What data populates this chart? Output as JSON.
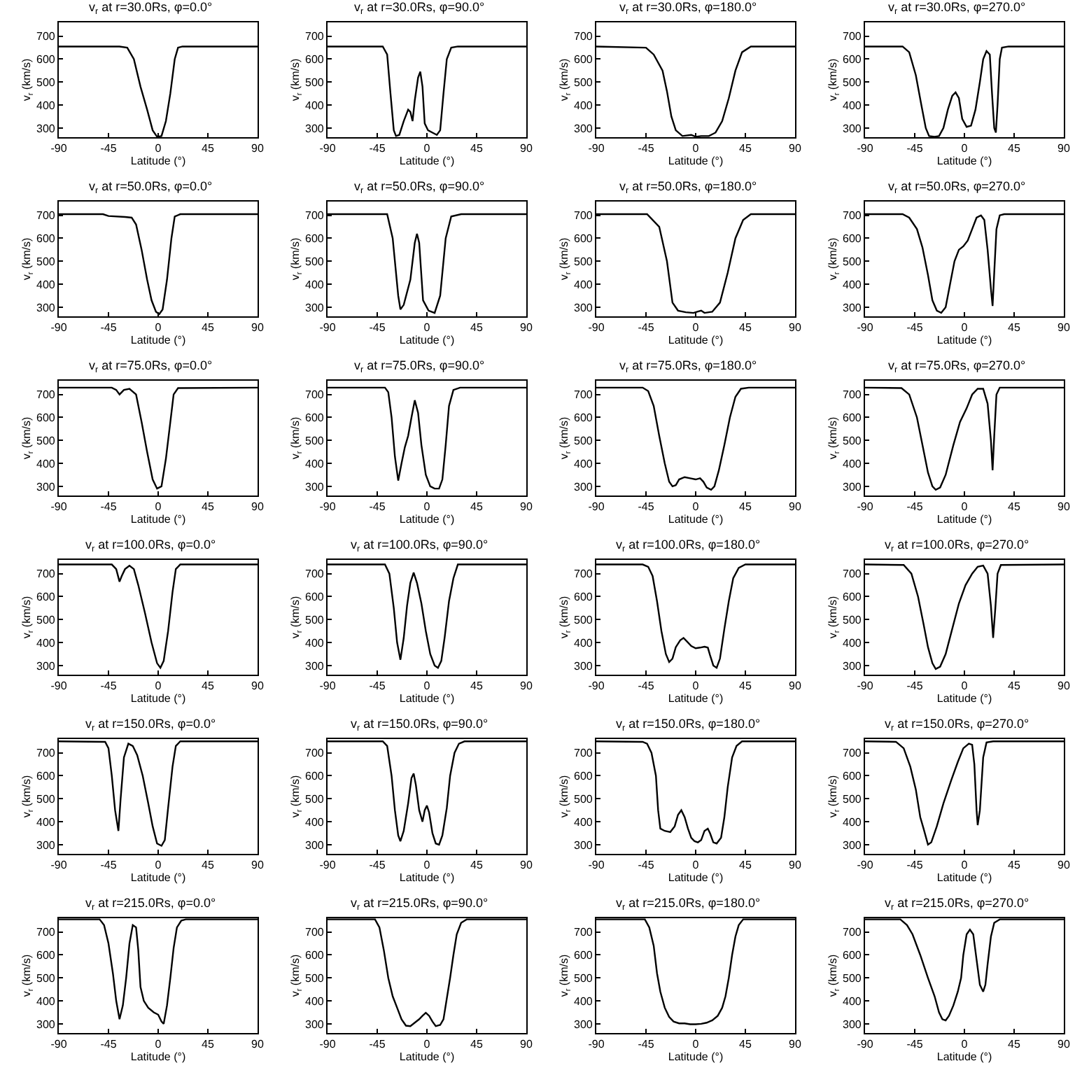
{
  "chart_data": [
    {
      "type": "line",
      "title": "v$_{r}$ at r=30.0Rs, φ=0.0°",
      "xlabel": "Latitude (°)",
      "ylabel": "v$_{r}$ (km/s)",
      "color": "#000000",
      "xlim": [
        -90,
        90
      ],
      "xticks": [
        -90,
        -45,
        0,
        45,
        90
      ],
      "ylim": [
        260,
        760
      ],
      "yticks": [
        300,
        400,
        500,
        600,
        700
      ],
      "grid": false,
      "legend": false,
      "x": [
        -90,
        -35,
        -28,
        -22,
        -16,
        -10,
        -5,
        -1,
        3,
        7,
        11,
        15,
        18,
        22,
        90
      ],
      "values": [
        655,
        655,
        650,
        600,
        480,
        380,
        290,
        262,
        265,
        330,
        450,
        600,
        650,
        655,
        655
      ]
    },
    {
      "type": "line",
      "title": "v$_{r}$ at r=30.0Rs, φ=90.0°",
      "xlabel": "Latitude (°)",
      "ylabel": "v$_{r}$ (km/s)",
      "color": "#000000",
      "xlim": [
        -90,
        90
      ],
      "xticks": [
        -90,
        -45,
        0,
        45,
        90
      ],
      "ylim": [
        260,
        760
      ],
      "yticks": [
        300,
        400,
        500,
        600,
        700
      ],
      "grid": false,
      "legend": false,
      "x": [
        -90,
        -40,
        -36,
        -33,
        -30,
        -28,
        -25,
        -21,
        -17,
        -15,
        -13,
        -11,
        -8,
        -6,
        -4,
        -2,
        1,
        5,
        9,
        12,
        15,
        18,
        22,
        28,
        90
      ],
      "values": [
        655,
        655,
        620,
        450,
        290,
        265,
        270,
        330,
        380,
        370,
        330,
        420,
        520,
        545,
        480,
        320,
        290,
        280,
        270,
        290,
        450,
        600,
        650,
        655,
        655
      ]
    },
    {
      "type": "line",
      "title": "v$_{r}$ at r=30.0Rs, φ=180.0°",
      "xlabel": "Latitude (°)",
      "ylabel": "v$_{r}$ (km/s)",
      "color": "#000000",
      "xlim": [
        -90,
        90
      ],
      "xticks": [
        -90,
        -45,
        0,
        45,
        90
      ],
      "ylim": [
        260,
        760
      ],
      "yticks": [
        300,
        400,
        500,
        600,
        700
      ],
      "grid": false,
      "legend": false,
      "x": [
        -90,
        -45,
        -38,
        -30,
        -26,
        -22,
        -18,
        -12,
        -4,
        0,
        5,
        12,
        18,
        24,
        30,
        36,
        42,
        50,
        90
      ],
      "values": [
        655,
        650,
        620,
        550,
        460,
        350,
        290,
        265,
        270,
        262,
        265,
        265,
        280,
        330,
        430,
        550,
        630,
        655,
        655
      ]
    },
    {
      "type": "line",
      "title": "v$_{r}$ at r=30.0Rs, φ=270.0°",
      "xlabel": "Latitude (°)",
      "ylabel": "v$_{r}$ (km/s)",
      "color": "#000000",
      "xlim": [
        -90,
        90
      ],
      "xticks": [
        -90,
        -45,
        0,
        45,
        90
      ],
      "ylim": [
        260,
        760
      ],
      "yticks": [
        300,
        400,
        500,
        600,
        700
      ],
      "grid": false,
      "legend": false,
      "x": [
        -90,
        -56,
        -50,
        -44,
        -39,
        -35,
        -32,
        -27,
        -23,
        -19,
        -15,
        -11,
        -8,
        -5,
        -2,
        2,
        6,
        10,
        14,
        17,
        20,
        23,
        25,
        27,
        28.5,
        30,
        32,
        34,
        40,
        90
      ],
      "values": [
        655,
        655,
        630,
        530,
        400,
        300,
        265,
        262,
        265,
        300,
        380,
        440,
        455,
        430,
        340,
        305,
        310,
        380,
        500,
        600,
        635,
        620,
        450,
        300,
        280,
        400,
        600,
        650,
        655,
        655
      ]
    },
    {
      "type": "line",
      "title": "v$_{r}$ at r=50.0Rs, φ=0.0°",
      "xlabel": "Latitude (°)",
      "ylabel": "v$_{r}$ (km/s)",
      "color": "#000000",
      "xlim": [
        -90,
        90
      ],
      "xticks": [
        -90,
        -45,
        0,
        45,
        90
      ],
      "ylim": [
        260,
        760
      ],
      "yticks": [
        300,
        400,
        500,
        600,
        700
      ],
      "grid": false,
      "legend": false,
      "x": [
        -90,
        -50,
        -45,
        -30,
        -24,
        -20,
        -15,
        -10,
        -6,
        -2,
        1,
        4,
        8,
        12,
        15,
        20,
        90
      ],
      "values": [
        705,
        705,
        697,
        693,
        690,
        660,
        550,
        420,
        330,
        280,
        270,
        290,
        420,
        600,
        695,
        705,
        705
      ]
    },
    {
      "type": "line",
      "title": "v$_{r}$ at r=50.0Rs, φ=90.0°",
      "xlabel": "Latitude (°)",
      "ylabel": "v$_{r}$ (km/s)",
      "color": "#000000",
      "xlim": [
        -90,
        90
      ],
      "xticks": [
        -90,
        -45,
        0,
        45,
        90
      ],
      "ylim": [
        260,
        760
      ],
      "yticks": [
        300,
        400,
        500,
        600,
        700
      ],
      "grid": false,
      "legend": false,
      "x": [
        -90,
        -36,
        -31,
        -26,
        -24,
        -21,
        -15,
        -11,
        -9,
        -7,
        -3.5,
        1.5,
        7,
        12,
        17,
        22,
        31,
        90
      ],
      "values": [
        705,
        705,
        600,
        350,
        290,
        310,
        420,
        580,
        620,
        580,
        330,
        285,
        275,
        350,
        600,
        695,
        705,
        705
      ]
    },
    {
      "type": "line",
      "title": "v$_{r}$ at r=50.0Rs, φ=180.0°",
      "xlabel": "Latitude (°)",
      "ylabel": "v$_{r}$ (km/s)",
      "color": "#000000",
      "xlim": [
        -90,
        90
      ],
      "xticks": [
        -90,
        -45,
        0,
        45,
        90
      ],
      "ylim": [
        260,
        760
      ],
      "yticks": [
        300,
        400,
        500,
        600,
        700
      ],
      "grid": false,
      "legend": false,
      "x": [
        -90,
        -44,
        -33,
        -26,
        -21,
        -16,
        -9,
        -2,
        1.5,
        5,
        8,
        15,
        22,
        29,
        36,
        43,
        50,
        90
      ],
      "values": [
        705,
        705,
        650,
        500,
        320,
        285,
        278,
        275,
        280,
        285,
        275,
        280,
        320,
        450,
        600,
        680,
        705,
        705
      ]
    },
    {
      "type": "line",
      "title": "v$_{r}$ at r=50.0Rs, φ=270.0°",
      "xlabel": "Latitude (°)",
      "ylabel": "v$_{r}$ (km/s)",
      "color": "#000000",
      "xlim": [
        -90,
        90
      ],
      "xticks": [
        -90,
        -45,
        0,
        45,
        90
      ],
      "ylim": [
        260,
        760
      ],
      "yticks": [
        300,
        400,
        500,
        600,
        700
      ],
      "grid": false,
      "legend": false,
      "x": [
        -90,
        -56,
        -50,
        -43,
        -38,
        -33,
        -29,
        -25,
        -21,
        -17,
        -13,
        -9,
        -5,
        -1,
        3,
        7,
        11,
        15,
        18,
        21,
        24,
        25.5,
        27,
        29,
        32,
        36,
        90
      ],
      "values": [
        705,
        705,
        690,
        640,
        560,
        440,
        330,
        285,
        275,
        300,
        400,
        500,
        550,
        565,
        590,
        640,
        690,
        700,
        680,
        550,
        380,
        305,
        450,
        640,
        700,
        705,
        705
      ]
    },
    {
      "type": "line",
      "title": "v$_{r}$ at r=75.0Rs, φ=0.0°",
      "xlabel": "Latitude (°)",
      "ylabel": "v$_{r}$ (km/s)",
      "color": "#000000",
      "xlim": [
        -90,
        90
      ],
      "xticks": [
        -90,
        -45,
        0,
        45,
        90
      ],
      "ylim": [
        260,
        760
      ],
      "yticks": [
        300,
        400,
        500,
        600,
        700
      ],
      "grid": false,
      "legend": false,
      "x": [
        -90,
        -42,
        -38,
        -35,
        -31,
        -26,
        -20,
        -15,
        -10,
        -5,
        -1,
        3,
        7,
        11,
        14,
        18,
        90
      ],
      "values": [
        730,
        730,
        720,
        700,
        720,
        725,
        700,
        580,
        450,
        330,
        290,
        300,
        420,
        580,
        700,
        728,
        730
      ]
    },
    {
      "type": "line",
      "title": "v$_{r}$ at r=75.0Rs, φ=90.0°",
      "xlabel": "Latitude (°)",
      "ylabel": "v$_{r}$ (km/s)",
      "color": "#000000",
      "xlim": [
        -90,
        90
      ],
      "xticks": [
        -90,
        -45,
        0,
        45,
        90
      ],
      "ylim": [
        260,
        760
      ],
      "yticks": [
        300,
        400,
        500,
        600,
        700
      ],
      "grid": false,
      "legend": false,
      "x": [
        -90,
        -38,
        -35,
        -32,
        -29,
        -26,
        -23,
        -20,
        -17,
        -14,
        -11,
        -8,
        -5,
        -1,
        3,
        7,
        11,
        14,
        17,
        20,
        24,
        30,
        90
      ],
      "values": [
        730,
        730,
        710,
        600,
        430,
        325,
        400,
        470,
        520,
        600,
        675,
        620,
        480,
        350,
        300,
        290,
        290,
        330,
        480,
        650,
        720,
        730,
        730
      ]
    },
    {
      "type": "line",
      "title": "v$_{r}$ at r=75.0Rs, φ=180.0°",
      "xlabel": "Latitude (°)",
      "ylabel": "v$_{r}$ (km/s)",
      "color": "#000000",
      "xlim": [
        -90,
        90
      ],
      "xticks": [
        -90,
        -45,
        0,
        45,
        90
      ],
      "ylim": [
        260,
        760
      ],
      "yticks": [
        300,
        400,
        500,
        600,
        700
      ],
      "grid": false,
      "legend": false,
      "x": [
        -90,
        -48,
        -43,
        -38,
        -33,
        -28,
        -24,
        -21,
        -18,
        -15,
        -10,
        -5,
        0,
        4,
        7,
        10,
        14,
        17,
        21,
        26,
        31,
        36,
        41,
        48,
        90
      ],
      "values": [
        730,
        730,
        715,
        650,
        520,
        400,
        320,
        300,
        305,
        330,
        340,
        335,
        330,
        335,
        320,
        295,
        285,
        300,
        370,
        480,
        600,
        690,
        725,
        730,
        730
      ]
    },
    {
      "type": "line",
      "title": "v$_{r}$ at r=75.0Rs, φ=270.0°",
      "xlabel": "Latitude (°)",
      "ylabel": "v$_{r}$ (km/s)",
      "color": "#000000",
      "xlim": [
        -90,
        90
      ],
      "xticks": [
        -90,
        -45,
        0,
        45,
        90
      ],
      "ylim": [
        260,
        760
      ],
      "yticks": [
        300,
        400,
        500,
        600,
        700
      ],
      "grid": false,
      "legend": false,
      "x": [
        -90,
        -57,
        -50,
        -43,
        -38,
        -33,
        -29,
        -26,
        -22,
        -17,
        -10,
        -4,
        2,
        7,
        12,
        17,
        21,
        24,
        25.5,
        27,
        29,
        32,
        90
      ],
      "values": [
        730,
        728,
        700,
        600,
        480,
        360,
        300,
        285,
        295,
        350,
        480,
        580,
        640,
        700,
        725,
        725,
        660,
        500,
        370,
        520,
        700,
        730,
        730
      ]
    },
    {
      "type": "line",
      "title": "v$_{r}$ at r=100.0Rs, φ=0.0°",
      "xlabel": "Latitude (°)",
      "ylabel": "v$_{r}$ (km/s)",
      "color": "#000000",
      "xlim": [
        -90,
        90
      ],
      "xticks": [
        -90,
        -45,
        0,
        45,
        90
      ],
      "ylim": [
        260,
        760
      ],
      "yticks": [
        300,
        400,
        500,
        600,
        700
      ],
      "grid": false,
      "legend": false,
      "x": [
        -90,
        -42,
        -38,
        -35,
        -33,
        -30,
        -26,
        -22,
        -18,
        -12,
        -6,
        -1,
        2,
        5,
        9,
        13,
        16,
        20,
        90
      ],
      "values": [
        740,
        740,
        720,
        665,
        690,
        720,
        735,
        720,
        650,
        530,
        400,
        310,
        290,
        320,
        450,
        620,
        720,
        740,
        740
      ]
    },
    {
      "type": "line",
      "title": "v$_{r}$ at r=100.0Rs, φ=90.0°",
      "xlabel": "Latitude (°)",
      "ylabel": "v$_{r}$ (km/s)",
      "color": "#000000",
      "xlim": [
        -90,
        90
      ],
      "xticks": [
        -90,
        -45,
        0,
        45,
        90
      ],
      "ylim": [
        260,
        760
      ],
      "yticks": [
        300,
        400,
        500,
        600,
        700
      ],
      "grid": false,
      "legend": false,
      "x": [
        -90,
        -38,
        -34,
        -30,
        -27,
        -24,
        -21,
        -18,
        -15,
        -12,
        -9,
        -5,
        -1,
        3,
        7,
        10,
        13,
        16,
        20,
        24,
        28,
        90
      ],
      "values": [
        740,
        740,
        700,
        550,
        400,
        325,
        420,
        560,
        660,
        705,
        660,
        570,
        450,
        350,
        300,
        290,
        320,
        420,
        580,
        680,
        740,
        740
      ]
    },
    {
      "type": "line",
      "title": "v$_{r}$ at r=100.0Rs, φ=180.0°",
      "xlabel": "Latitude (°)",
      "ylabel": "v$_{r}$ (km/s)",
      "color": "#000000",
      "xlim": [
        -90,
        90
      ],
      "xticks": [
        -90,
        -45,
        0,
        45,
        90
      ],
      "ylim": [
        260,
        760
      ],
      "yticks": [
        300,
        400,
        500,
        600,
        700
      ],
      "grid": false,
      "legend": false,
      "x": [
        -90,
        -48,
        -43,
        -39,
        -35,
        -31,
        -27,
        -24,
        -21,
        -18,
        -14,
        -11,
        -8,
        -4,
        0,
        4,
        8,
        11,
        13,
        16,
        19,
        22,
        26,
        30,
        34,
        39,
        45,
        90
      ],
      "values": [
        740,
        740,
        730,
        690,
        580,
        450,
        350,
        315,
        330,
        380,
        410,
        420,
        405,
        385,
        375,
        378,
        382,
        378,
        345,
        300,
        290,
        330,
        460,
        580,
        680,
        725,
        740,
        740
      ]
    },
    {
      "type": "line",
      "title": "v$_{r}$ at r=100.0Rs, φ=270.0°",
      "xlabel": "Latitude (°)",
      "ylabel": "v$_{r}$ (km/s)",
      "color": "#000000",
      "xlim": [
        -90,
        90
      ],
      "xticks": [
        -90,
        -45,
        0,
        45,
        90
      ],
      "ylim": [
        260,
        760
      ],
      "yticks": [
        300,
        400,
        500,
        600,
        700
      ],
      "grid": false,
      "legend": false,
      "x": [
        -90,
        -55,
        -48,
        -42,
        -37,
        -33,
        -29,
        -26,
        -22,
        -17,
        -11,
        -5,
        1,
        7,
        12,
        17,
        21,
        24,
        26,
        28,
        30,
        33,
        90
      ],
      "values": [
        740,
        738,
        700,
        600,
        480,
        380,
        310,
        285,
        295,
        350,
        460,
        570,
        650,
        700,
        730,
        735,
        700,
        560,
        420,
        550,
        700,
        738,
        740
      ]
    },
    {
      "type": "line",
      "title": "v$_{r}$ at r=150.0Rs, φ=0.0°",
      "xlabel": "Latitude (°)",
      "ylabel": "v$_{r}$ (km/s)",
      "color": "#000000",
      "xlim": [
        -90,
        90
      ],
      "xticks": [
        -90,
        -45,
        0,
        45,
        90
      ],
      "ylim": [
        260,
        760
      ],
      "yticks": [
        300,
        400,
        500,
        600,
        700
      ],
      "grid": false,
      "legend": false,
      "x": [
        -90,
        -48,
        -45,
        -42,
        -39,
        -36,
        -34,
        -31,
        -27,
        -23,
        -19,
        -14,
        -9,
        -5,
        -1,
        3,
        6,
        9,
        13,
        16,
        20,
        90
      ],
      "values": [
        750,
        748,
        720,
        600,
        450,
        360,
        500,
        680,
        740,
        730,
        690,
        600,
        480,
        380,
        305,
        295,
        320,
        460,
        640,
        730,
        750,
        750
      ]
    },
    {
      "type": "line",
      "title": "v$_{r}$ at r=150.0Rs, φ=90.0°",
      "xlabel": "Latitude (°)",
      "ylabel": "v$_{r}$ (km/s)",
      "color": "#000000",
      "xlim": [
        -90,
        90
      ],
      "xticks": [
        -90,
        -45,
        0,
        45,
        90
      ],
      "ylim": [
        260,
        760
      ],
      "yticks": [
        300,
        400,
        500,
        600,
        700
      ],
      "grid": false,
      "legend": false,
      "x": [
        -90,
        -40,
        -36,
        -32,
        -29,
        -26,
        -24,
        -21,
        -17,
        -14,
        -12,
        -10,
        -7,
        -4,
        -2,
        0,
        2,
        5,
        8,
        11,
        14,
        18,
        21,
        25,
        29,
        34,
        90
      ],
      "values": [
        750,
        750,
        730,
        600,
        450,
        340,
        315,
        360,
        480,
        590,
        610,
        560,
        450,
        400,
        450,
        470,
        440,
        350,
        305,
        300,
        340,
        460,
        600,
        700,
        740,
        750,
        750
      ]
    },
    {
      "type": "line",
      "title": "v$_{r}$ at r=150.0Rs, φ=180.0°",
      "xlabel": "Latitude (°)",
      "ylabel": "v$_{r}$ (km/s)",
      "color": "#000000",
      "xlim": [
        -90,
        90
      ],
      "xticks": [
        -90,
        -45,
        0,
        45,
        90
      ],
      "ylim": [
        260,
        760
      ],
      "yticks": [
        300,
        400,
        500,
        600,
        700
      ],
      "grid": false,
      "legend": false,
      "x": [
        -90,
        -48,
        -44,
        -40,
        -36,
        -34,
        -32,
        -28,
        -23,
        -19,
        -16,
        -13,
        -10,
        -7,
        -4,
        -1,
        2,
        5,
        8,
        11,
        13,
        16,
        19,
        23,
        26,
        29,
        33,
        37,
        42,
        90
      ],
      "values": [
        750,
        748,
        740,
        700,
        600,
        450,
        370,
        360,
        355,
        380,
        430,
        450,
        420,
        370,
        330,
        315,
        310,
        320,
        360,
        370,
        350,
        310,
        305,
        330,
        420,
        550,
        680,
        730,
        750,
        750
      ]
    },
    {
      "type": "line",
      "title": "v$_{r}$ at r=150.0Rs, φ=270.0°",
      "xlabel": "Latitude (°)",
      "ylabel": "v$_{r}$ (km/s)",
      "color": "#000000",
      "xlim": [
        -90,
        90
      ],
      "xticks": [
        -90,
        -45,
        0,
        45,
        90
      ],
      "ylim": [
        260,
        760
      ],
      "yticks": [
        300,
        400,
        500,
        600,
        700
      ],
      "grid": false,
      "legend": false,
      "x": [
        -90,
        -62,
        -55,
        -49,
        -44,
        -40,
        -37,
        -33,
        -30,
        -25,
        -19,
        -12,
        -6,
        -1,
        4,
        7,
        9,
        11,
        12,
        14,
        17,
        20,
        26,
        90
      ],
      "values": [
        750,
        748,
        720,
        640,
        540,
        420,
        370,
        300,
        310,
        380,
        480,
        580,
        660,
        720,
        740,
        735,
        650,
        450,
        385,
        450,
        680,
        745,
        750,
        750
      ]
    },
    {
      "type": "line",
      "title": "v$_{r}$ at r=215.0Rs, φ=0.0°",
      "xlabel": "Latitude (°)",
      "ylabel": "v$_{r}$ (km/s)",
      "color": "#000000",
      "xlim": [
        -90,
        90
      ],
      "xticks": [
        -90,
        -45,
        0,
        45,
        90
      ],
      "ylim": [
        260,
        760
      ],
      "yticks": [
        300,
        400,
        500,
        600,
        700
      ],
      "grid": false,
      "legend": false,
      "x": [
        -90,
        -53,
        -49,
        -45,
        -41,
        -38,
        -35,
        -32,
        -29,
        -26,
        -23,
        -20,
        -18,
        -16,
        -13,
        -9,
        -4,
        0,
        3,
        5,
        8,
        11,
        14,
        17,
        21,
        25,
        90
      ],
      "values": [
        755,
        755,
        730,
        650,
        520,
        400,
        320,
        380,
        500,
        650,
        730,
        720,
        620,
        460,
        400,
        370,
        350,
        340,
        310,
        300,
        380,
        500,
        630,
        720,
        750,
        755,
        755
      ]
    },
    {
      "type": "line",
      "title": "v$_{r}$ at r=215.0Rs, φ=90.0°",
      "xlabel": "Latitude (°)",
      "ylabel": "v$_{r}$ (km/s)",
      "color": "#000000",
      "xlim": [
        -90,
        90
      ],
      "xticks": [
        -90,
        -45,
        0,
        45,
        90
      ],
      "ylim": [
        260,
        760
      ],
      "yticks": [
        300,
        400,
        500,
        600,
        700
      ],
      "grid": false,
      "legend": false,
      "x": [
        -90,
        -47,
        -43,
        -39,
        -35,
        -31,
        -27,
        -23,
        -19,
        -15,
        -11,
        -7,
        -4,
        -1,
        2,
        5,
        8,
        12,
        15,
        18,
        21,
        24,
        27,
        31,
        36,
        90
      ],
      "values": [
        755,
        755,
        720,
        620,
        500,
        420,
        370,
        320,
        292,
        290,
        305,
        320,
        335,
        348,
        335,
        310,
        290,
        295,
        320,
        410,
        500,
        600,
        690,
        740,
        755,
        755
      ]
    },
    {
      "type": "line",
      "title": "v$_{r}$ at r=215.0Rs, φ=180.0°",
      "xlabel": "Latitude (°)",
      "ylabel": "v$_{r}$ (km/s)",
      "color": "#000000",
      "xlim": [
        -90,
        90
      ],
      "xticks": [
        -90,
        -45,
        0,
        45,
        90
      ],
      "ylim": [
        260,
        760
      ],
      "yticks": [
        300,
        400,
        500,
        600,
        700
      ],
      "grid": false,
      "legend": false,
      "x": [
        -90,
        -46,
        -42,
        -38,
        -35,
        -32,
        -28,
        -24,
        -20,
        -15,
        -10,
        -5,
        0,
        5,
        10,
        15,
        20,
        24,
        27,
        30,
        33,
        36,
        39,
        43,
        90
      ],
      "values": [
        755,
        755,
        720,
        640,
        520,
        440,
        370,
        330,
        310,
        302,
        302,
        298,
        298,
        300,
        305,
        315,
        335,
        370,
        420,
        500,
        600,
        680,
        730,
        755,
        755
      ]
    },
    {
      "type": "line",
      "title": "v$_{r}$ at r=215.0Rs, φ=270.0°",
      "xlabel": "Latitude (°)",
      "ylabel": "v$_{r}$ (km/s)",
      "color": "#000000",
      "xlim": [
        -90,
        90
      ],
      "xticks": [
        -90,
        -45,
        0,
        45,
        90
      ],
      "ylim": [
        260,
        760
      ],
      "yticks": [
        300,
        400,
        500,
        600,
        700
      ],
      "grid": false,
      "legend": false,
      "x": [
        -90,
        -58,
        -52,
        -47,
        -40,
        -33,
        -27,
        -23,
        -20,
        -17,
        -14,
        -10,
        -6,
        -3,
        -1,
        2,
        5,
        8,
        11,
        14,
        17,
        19,
        21,
        24,
        27,
        32,
        90
      ],
      "values": [
        755,
        755,
        730,
        690,
        600,
        500,
        420,
        350,
        320,
        315,
        335,
        380,
        440,
        500,
        600,
        690,
        710,
        690,
        580,
        470,
        440,
        470,
        560,
        680,
        740,
        755,
        755
      ]
    }
  ]
}
